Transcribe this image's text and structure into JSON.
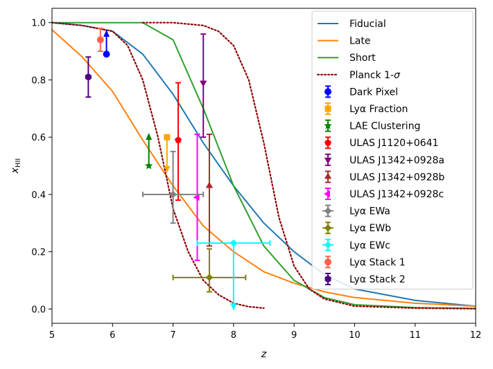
{
  "chart_data": {
    "type": "line",
    "title": "",
    "xlabel": "z",
    "ylabel": "x_HII",
    "ylabel_main": "x",
    "ylabel_sub": "HII",
    "xlim": [
      5,
      12
    ],
    "ylim": [
      -0.05,
      1.05
    ],
    "xticks": [
      5,
      6,
      7,
      8,
      9,
      10,
      11,
      12
    ],
    "xtick_labels": [
      "5",
      "6",
      "7",
      "8",
      "9",
      "10",
      "11",
      "12"
    ],
    "yticks": [
      0.0,
      0.2,
      0.4,
      0.6,
      0.8,
      1.0
    ],
    "ytick_labels": [
      "0.0",
      "0.2",
      "0.4",
      "0.6",
      "0.8",
      "1.0"
    ],
    "legend_position": "top-right",
    "series": [
      {
        "name": "Fiducial",
        "color": "#1f77b4",
        "style": "solid",
        "x": [
          5,
          5.5,
          6,
          6.5,
          7,
          7.5,
          8,
          8.5,
          9,
          9.5,
          10,
          11,
          12
        ],
        "y": [
          1.0,
          0.99,
          0.97,
          0.89,
          0.75,
          0.58,
          0.43,
          0.3,
          0.2,
          0.12,
          0.07,
          0.03,
          0.01
        ]
      },
      {
        "name": "Late",
        "color": "#ff7f0e",
        "style": "solid",
        "x": [
          5,
          5.5,
          6,
          6.5,
          7,
          7.5,
          8,
          8.5,
          9,
          9.5,
          10,
          11,
          12
        ],
        "y": [
          0.975,
          0.88,
          0.76,
          0.59,
          0.43,
          0.29,
          0.2,
          0.13,
          0.09,
          0.06,
          0.04,
          0.02,
          0.01
        ]
      },
      {
        "name": "Short",
        "color": "#2ca02c",
        "style": "solid",
        "x": [
          5,
          6,
          6.5,
          7,
          7.5,
          8,
          8.5,
          9,
          9.5,
          10,
          11,
          12
        ],
        "y": [
          1.0,
          1.0,
          1.0,
          0.94,
          0.7,
          0.43,
          0.22,
          0.1,
          0.04,
          0.015,
          0.005,
          0.002
        ]
      },
      {
        "name": "Planck 1-σ",
        "legend_main": "Planck 1-",
        "legend_sigma": "σ",
        "color": "#8b0000",
        "style": "dotted",
        "x": [
          5,
          5.5,
          6,
          6.25,
          6.5,
          6.75,
          7,
          7.25,
          7.5,
          7.75,
          8,
          8.25,
          8.5
        ],
        "y": [
          1.0,
          0.99,
          0.97,
          0.92,
          0.8,
          0.6,
          0.35,
          0.2,
          0.1,
          0.05,
          0.02,
          0.008,
          0.003
        ]
      },
      {
        "name": "Planck 1-σ upper",
        "legend": false,
        "color": "#8b0000",
        "style": "dotted",
        "x": [
          6.5,
          7,
          7.5,
          7.75,
          8,
          8.25,
          8.5,
          8.75,
          9,
          9.25,
          9.5,
          10,
          11,
          12
        ],
        "y": [
          1.0,
          1.0,
          0.99,
          0.97,
          0.92,
          0.8,
          0.58,
          0.32,
          0.15,
          0.07,
          0.035,
          0.01,
          0.003,
          0.001
        ]
      }
    ],
    "observations": [
      {
        "name": "Dark Pixel",
        "color": "#0000ff",
        "marker": "circle",
        "x": 5.9,
        "y": 0.89,
        "arrow": "up",
        "yerr": [
          0.0,
          0.08
        ]
      },
      {
        "name": "Lyα Fraction",
        "color": "#ffa500",
        "marker": "square",
        "x": 6.9,
        "y": 0.6,
        "arrow": "down",
        "yerr": [
          0.12,
          0.0
        ]
      },
      {
        "name": "LAE Clustering",
        "color": "#008000",
        "marker": "star",
        "x": 6.6,
        "y": 0.5,
        "arrow": "up",
        "yerr": [
          0.0,
          0.11
        ]
      },
      {
        "name": "ULAS J1120+0641",
        "color": "#ff0000",
        "marker": "pentagon",
        "x": 7.085,
        "y": 0.59,
        "yerr": [
          0.21,
          0.2
        ]
      },
      {
        "name": "ULAS J1342+0928a",
        "color": "#800080",
        "marker": "triangle-down",
        "x": 7.5,
        "y": 0.79,
        "yerr": [
          0.19,
          0.17
        ]
      },
      {
        "name": "ULAS J1342+0928b",
        "color": "#a52a2a",
        "marker": "triangle-up",
        "x": 7.6,
        "y": 0.43,
        "yerr": [
          0.21,
          0.18
        ]
      },
      {
        "name": "ULAS J1342+0928c",
        "color": "#ff00ff",
        "marker": "triangle-left",
        "x": 7.4,
        "y": 0.39,
        "yerr": [
          0.22,
          0.22
        ]
      },
      {
        "name": "Lyα EWa",
        "color": "#808080",
        "marker": "diamond",
        "x": 7.0,
        "y": 0.4,
        "xerr": [
          0.5,
          0.5
        ],
        "yerr": [
          0.1,
          0.15
        ]
      },
      {
        "name": "Lyα EWb",
        "color": "#808000",
        "marker": "diamond",
        "x": 7.6,
        "y": 0.11,
        "xerr": [
          0.6,
          0.6
        ],
        "yerr": [
          0.05,
          0.1
        ]
      },
      {
        "name": "Lyα EWc",
        "color": "#00ffff",
        "marker": "diamond",
        "x": 8.0,
        "y": 0.23,
        "xerr": [
          0.6,
          0.6
        ],
        "arrow": "down",
        "yerr": [
          0.23,
          0.0
        ]
      },
      {
        "name": "Lyα Stack 1",
        "color": "#ff6347",
        "marker": "circle",
        "x": 5.8,
        "y": 0.94,
        "yerr": [
          0.04,
          0.04
        ]
      },
      {
        "name": "Lyα Stack 2",
        "color": "#4b0082",
        "marker": "hexagon",
        "x": 5.6,
        "y": 0.81,
        "yerr": [
          0.07,
          0.07
        ]
      }
    ]
  }
}
